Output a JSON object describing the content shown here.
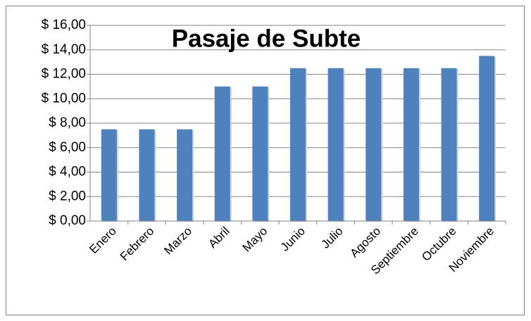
{
  "chart_data": {
    "type": "bar",
    "title": "Pasaje de Subte",
    "categories": [
      "Enero",
      "Febrero",
      "Marzo",
      "Abril",
      "Mayo",
      "Junio",
      "Julio",
      "Agosto",
      "Septiembre",
      "Octubre",
      "Noviembre"
    ],
    "values": [
      7.5,
      7.5,
      7.5,
      11,
      11,
      12.5,
      12.5,
      12.5,
      12.5,
      12.5,
      13.5
    ],
    "color": "#4f81bd",
    "ylim": [
      0,
      16
    ],
    "yticks": [
      {
        "value": 0,
        "label": "$ 0,00"
      },
      {
        "value": 2,
        "label": "$ 2,00"
      },
      {
        "value": 4,
        "label": "$ 4,00"
      },
      {
        "value": 6,
        "label": "$ 6,00"
      },
      {
        "value": 8,
        "label": "$ 8,00"
      },
      {
        "value": 10,
        "label": "$ 10,00"
      },
      {
        "value": 12,
        "label": "$ 12,00"
      },
      {
        "value": 14,
        "label": "$ 14,00"
      },
      {
        "value": 16,
        "label": "$ 16,00"
      }
    ],
    "grid": true
  }
}
